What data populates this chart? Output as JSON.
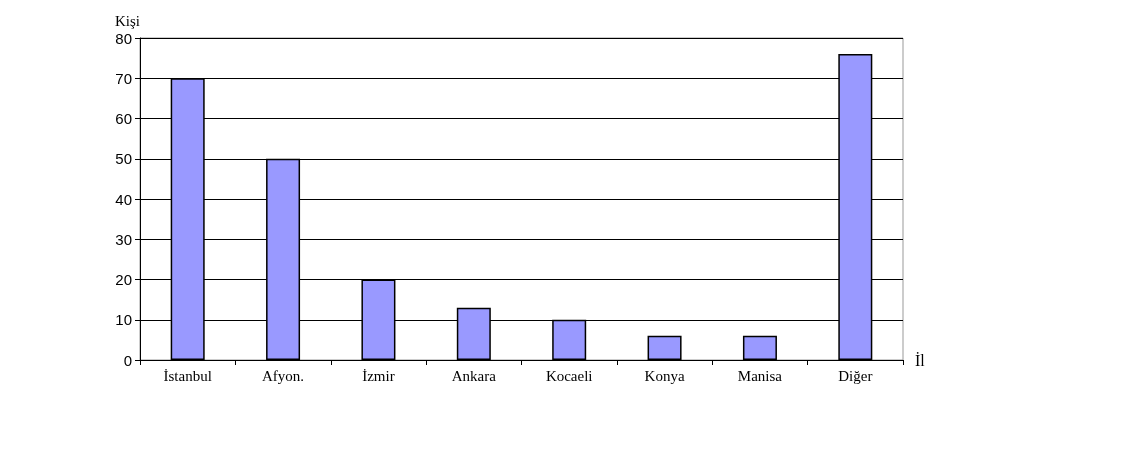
{
  "chart_data": {
    "type": "bar",
    "xlabel": "İl",
    "ylabel": "Kişi",
    "categories": [
      "İstanbul",
      "Afyon.",
      "İzmir",
      "Ankara",
      "Kocaeli",
      "Konya",
      "Manisa",
      "Diğer"
    ],
    "values": [
      70,
      50,
      20,
      13,
      10,
      6,
      6,
      76
    ],
    "color": "#9999ff",
    "ylim": [
      0,
      80
    ],
    "yticks": [
      0,
      10,
      20,
      30,
      40,
      50,
      60,
      70,
      80
    ],
    "grid": "y"
  }
}
